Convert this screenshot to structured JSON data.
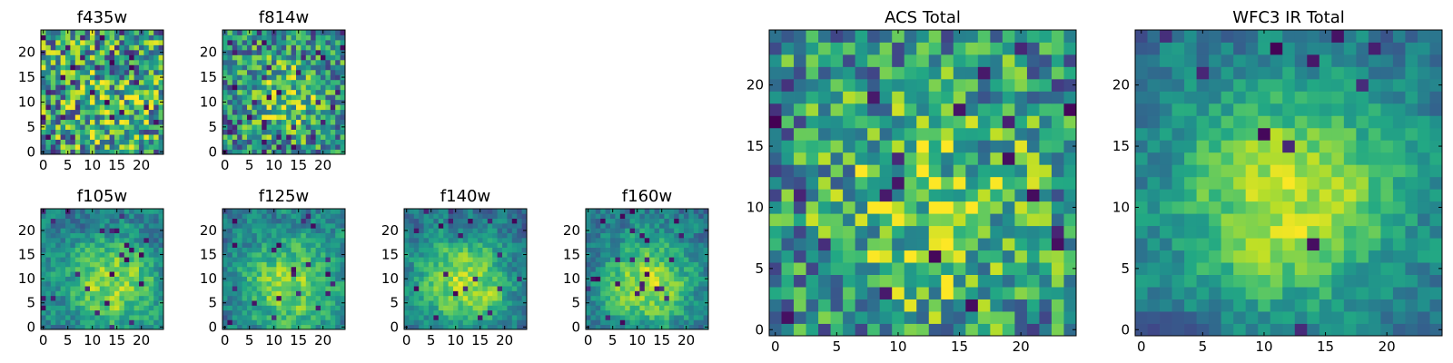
{
  "chart_data": [
    {
      "type": "heatmap",
      "title": "f435w",
      "grid_size": 25,
      "colormap": "viridis",
      "xticks": [
        0,
        5,
        10,
        15,
        20
      ],
      "yticks": [
        0,
        5,
        10,
        15,
        20
      ],
      "xlim": [
        -0.5,
        24.5
      ],
      "ylim": [
        -0.5,
        24.5
      ],
      "pattern": {
        "seed": 11,
        "smooth": 0,
        "noise": 0.85,
        "blob": 0.15,
        "dark_prob": 0.06,
        "blob_center": [
          14,
          8
        ],
        "blob_width": 6
      }
    },
    {
      "type": "heatmap",
      "title": "f814w",
      "grid_size": 25,
      "colormap": "viridis",
      "xticks": [
        0,
        5,
        10,
        15,
        20
      ],
      "yticks": [
        0,
        5,
        10,
        15,
        20
      ],
      "xlim": [
        -0.5,
        24.5
      ],
      "ylim": [
        -0.5,
        24.5
      ],
      "pattern": {
        "seed": 23,
        "smooth": 0,
        "noise": 0.7,
        "blob": 0.3,
        "dark_prob": 0.05,
        "blob_center": [
          12,
          11
        ],
        "blob_width": 6
      }
    },
    {
      "type": "heatmap",
      "title": "f105w",
      "grid_size": 25,
      "colormap": "viridis",
      "xticks": [
        0,
        5,
        10,
        15,
        20
      ],
      "yticks": [
        0,
        5,
        10,
        15,
        20
      ],
      "xlim": [
        -0.5,
        24.5
      ],
      "ylim": [
        -0.5,
        24.5
      ],
      "pattern": {
        "seed": 37,
        "smooth": 1,
        "noise": 0.55,
        "blob": 0.45,
        "dark_prob": 0.04,
        "blob_center": [
          14,
          9
        ],
        "blob_width": 7
      }
    },
    {
      "type": "heatmap",
      "title": "f125w",
      "grid_size": 25,
      "colormap": "viridis",
      "xticks": [
        0,
        5,
        10,
        15,
        20
      ],
      "yticks": [
        0,
        5,
        10,
        15,
        20
      ],
      "xlim": [
        -0.5,
        24.5
      ],
      "ylim": [
        -0.5,
        24.5
      ],
      "pattern": {
        "seed": 41,
        "smooth": 1,
        "noise": 0.55,
        "blob": 0.45,
        "dark_prob": 0.04,
        "blob_center": [
          13,
          9
        ],
        "blob_width": 7
      }
    },
    {
      "type": "heatmap",
      "title": "f140w",
      "grid_size": 25,
      "colormap": "viridis",
      "xticks": [
        0,
        5,
        10,
        15,
        20
      ],
      "yticks": [
        0,
        5,
        10,
        15,
        20
      ],
      "xlim": [
        -0.5,
        24.5
      ],
      "ylim": [
        -0.5,
        24.5
      ],
      "pattern": {
        "seed": 53,
        "smooth": 1,
        "noise": 0.5,
        "blob": 0.5,
        "dark_prob": 0.04,
        "blob_center": [
          12,
          9
        ],
        "blob_width": 7
      }
    },
    {
      "type": "heatmap",
      "title": "f160w",
      "grid_size": 25,
      "colormap": "viridis",
      "xticks": [
        0,
        5,
        10,
        15,
        20
      ],
      "yticks": [
        0,
        5,
        10,
        15,
        20
      ],
      "xlim": [
        -0.5,
        24.5
      ],
      "ylim": [
        -0.5,
        24.5
      ],
      "pattern": {
        "seed": 67,
        "smooth": 1,
        "noise": 0.5,
        "blob": 0.5,
        "dark_prob": 0.03,
        "blob_center": [
          12,
          9
        ],
        "blob_width": 7
      }
    },
    {
      "type": "heatmap",
      "title": "ACS Total",
      "grid_size": 25,
      "colormap": "viridis",
      "xticks": [
        0,
        5,
        10,
        15,
        20
      ],
      "yticks": [
        0,
        5,
        10,
        15,
        20
      ],
      "xlim": [
        -0.5,
        24.5
      ],
      "ylim": [
        -0.5,
        24.5
      ],
      "pattern": {
        "seed": 79,
        "smooth": 0,
        "noise": 0.7,
        "blob": 0.3,
        "dark_prob": 0.05,
        "blob_center": [
          13,
          10
        ],
        "blob_width": 7
      }
    },
    {
      "type": "heatmap",
      "title": "WFC3 IR Total",
      "grid_size": 25,
      "colormap": "viridis",
      "xticks": [
        0,
        5,
        10,
        15,
        20
      ],
      "yticks": [
        0,
        5,
        10,
        15,
        20
      ],
      "xlim": [
        -0.5,
        24.5
      ],
      "ylim": [
        -0.5,
        24.5
      ],
      "pattern": {
        "seed": 97,
        "smooth": 1,
        "noise": 0.45,
        "blob": 0.55,
        "dark_prob": 0.025,
        "blob_center": [
          12,
          11
        ],
        "blob_width": 7
      }
    }
  ]
}
